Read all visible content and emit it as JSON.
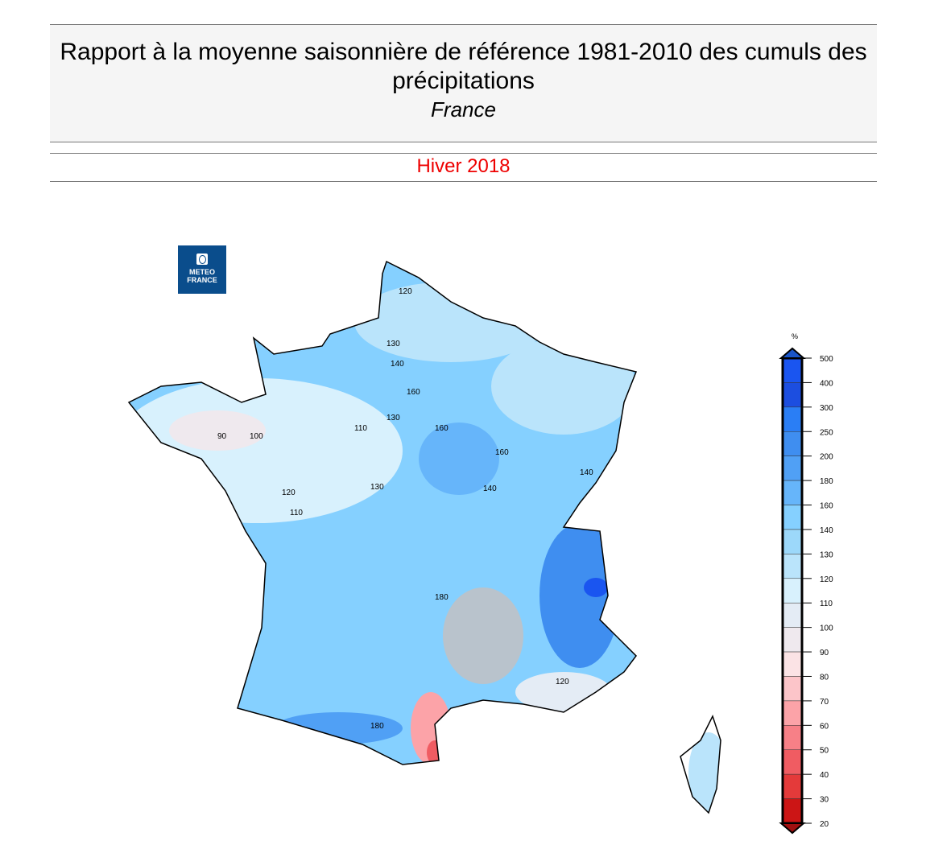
{
  "header": {
    "title": "Rapport à la moyenne saisonnière de référence 1981-2010 des cumuls des précipitations",
    "region": "France",
    "period": "Hiver 2018"
  },
  "logo": {
    "line1": "METEO",
    "line2": "FRANCE"
  },
  "legend": {
    "unit": "%",
    "ticks": [
      "500",
      "400",
      "300",
      "250",
      "200",
      "180",
      "160",
      "140",
      "130",
      "120",
      "110",
      "100",
      "90",
      "80",
      "70",
      "60",
      "50",
      "40",
      "30",
      "20"
    ],
    "colors": [
      "#1a55f0",
      "#1c4ee0",
      "#2a7ef5",
      "#3f8ef0",
      "#50a0f5",
      "#66b5fa",
      "#85d0ff",
      "#9cd8fa",
      "#bae4fb",
      "#d8f1fd",
      "#e4ecf5",
      "#efe9ee",
      "#fbe3e5",
      "#fcc5c9",
      "#fca3a8",
      "#f78087",
      "#f05c62",
      "#e43a3a",
      "#cc1515"
    ]
  },
  "contour_labels": [
    "120",
    "140",
    "160",
    "130",
    "110",
    "90",
    "100",
    "180",
    "120",
    "140",
    "160",
    "130",
    "110",
    "180",
    "120",
    "130",
    "140",
    "160"
  ]
}
